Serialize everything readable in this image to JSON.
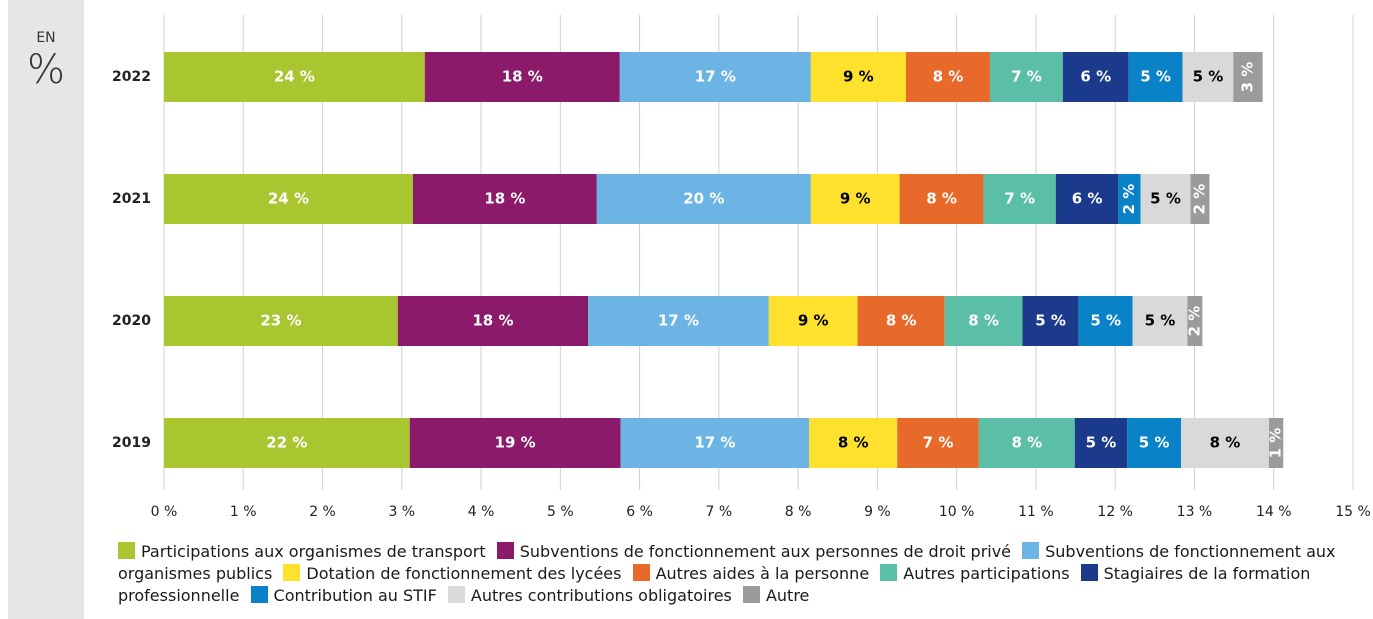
{
  "chart_data": {
    "type": "stacked-bar-horizontal",
    "unit_caption": [
      "EN",
      "%"
    ],
    "categories": [
      "2022",
      "2021",
      "2020",
      "2019"
    ],
    "xlim": [
      0,
      15
    ],
    "xticks": [
      {
        "value": 0,
        "label": "0 %"
      },
      {
        "value": 1,
        "label": "1 %"
      },
      {
        "value": 2,
        "label": "2 %"
      },
      {
        "value": 3,
        "label": "3 %"
      },
      {
        "value": 4,
        "label": "4 %"
      },
      {
        "value": 5,
        "label": "5 %"
      },
      {
        "value": 6,
        "label": "6 %"
      },
      {
        "value": 7,
        "label": "7 %"
      },
      {
        "value": 8,
        "label": "8 %"
      },
      {
        "value": 9,
        "label": "9 %"
      },
      {
        "value": 10,
        "label": "10 %"
      },
      {
        "value": 11,
        "label": "11 %"
      },
      {
        "value": 12,
        "label": "12 %"
      },
      {
        "value": 13,
        "label": "13 %"
      },
      {
        "value": 14,
        "label": "14 %"
      },
      {
        "value": 15,
        "label": "15 %"
      }
    ],
    "grid": true,
    "series": [
      {
        "name": "Participations aux organismes de transport",
        "color": "#a9c530",
        "label_color": "#ffffff",
        "values": [
          3.29,
          3.14,
          2.95,
          3.1
        ],
        "value_labels": [
          "24 %",
          "24 %",
          "23 %",
          "22 %"
        ]
      },
      {
        "name": "Subventions de fonctionnement aux personnes de droit privé",
        "color": "#8b1a6b",
        "label_color": "#ffffff",
        "values": [
          2.46,
          2.32,
          2.4,
          2.66
        ],
        "value_labels": [
          "18 %",
          "18 %",
          "18 %",
          "19 %"
        ]
      },
      {
        "name": "Subventions de fonctionnement aux organismes publics",
        "color": "#6bb4e3",
        "label_color": "#ffffff",
        "values": [
          2.41,
          2.7,
          2.28,
          2.38
        ],
        "value_labels": [
          "17 %",
          "20 %",
          "17 %",
          "17 %"
        ]
      },
      {
        "name": "Dotation de fonctionnement des lycées",
        "color": "#fde12c",
        "label_color": "#000000",
        "values": [
          1.2,
          1.12,
          1.12,
          1.11
        ],
        "value_labels": [
          "9 %",
          "9 %",
          "9 %",
          "8 %"
        ]
      },
      {
        "name": "Autres aides à la personne",
        "color": "#e86a2a",
        "label_color": "#ffffff",
        "values": [
          1.06,
          1.06,
          1.1,
          1.03
        ],
        "value_labels": [
          "8 %",
          "8 %",
          "8 %",
          "7 %"
        ]
      },
      {
        "name": "Autres participations",
        "color": "#5bbea6",
        "label_color": "#ffffff",
        "values": [
          0.92,
          0.91,
          0.98,
          1.21
        ],
        "value_labels": [
          "7 %",
          "7 %",
          "8 %",
          "8 %"
        ]
      },
      {
        "name": "Stagiaires de la formation professionnelle",
        "color": "#1b3a8c",
        "label_color": "#ffffff",
        "values": [
          0.83,
          0.79,
          0.71,
          0.66
        ],
        "value_labels": [
          "6 %",
          "6 %",
          "5 %",
          "5 %"
        ]
      },
      {
        "name": "Contribution au STIF",
        "color": "#0a82c8",
        "label_color": "#ffffff",
        "values": [
          0.68,
          0.28,
          0.68,
          0.68
        ],
        "value_labels": [
          "5 %",
          "2 %",
          "5 %",
          "5 %"
        ]
      },
      {
        "name": "Autres contributions obligatoires",
        "color": "#d9d9d9",
        "label_color": "#000000",
        "values": [
          0.64,
          0.63,
          0.69,
          1.11
        ],
        "value_labels": [
          "5 %",
          "5 %",
          "5 %",
          "8 %"
        ]
      },
      {
        "name": "Autre",
        "color": "#9b9b9b",
        "label_color": "#ffffff",
        "values": [
          0.37,
          0.24,
          0.19,
          0.18
        ],
        "value_labels": [
          "3 %",
          "2 %",
          "2 %",
          "1 %"
        ]
      }
    ]
  }
}
